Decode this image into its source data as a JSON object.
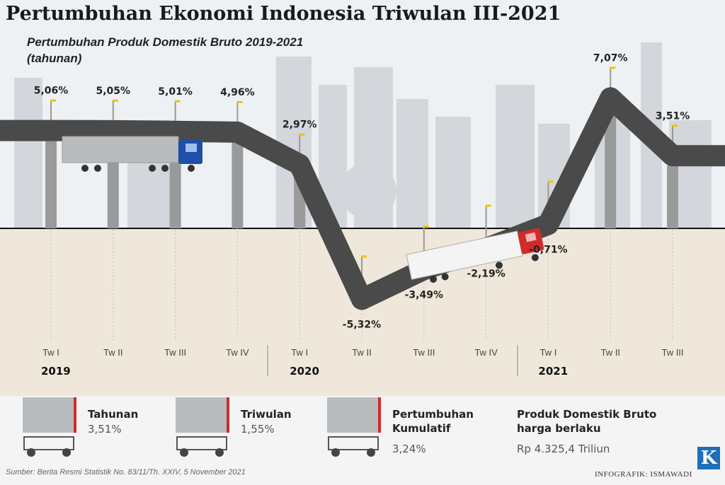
{
  "title": "Pertumbuhan Ekonomi Indonesia Triwulan III-2021",
  "subtitle_line1": "Pertumbuhan Produk Domestik Bruto 2019-2021",
  "subtitle_line2": "(tahunan)",
  "chart_data": {
    "type": "line",
    "x": [
      "Tw I",
      "Tw II",
      "Tw III",
      "Tw IV",
      "Tw I",
      "Tw II",
      "Tw III",
      "Tw IV",
      "Tw I",
      "Tw II",
      "Tw III"
    ],
    "years": [
      {
        "label": "2019",
        "start": 0
      },
      {
        "label": "2020",
        "start": 4
      },
      {
        "label": "2021",
        "start": 8
      }
    ],
    "series": [
      {
        "values": [
          5.06,
          5.05,
          5.01,
          4.96,
          2.97,
          -5.32,
          -3.49,
          -2.19,
          -0.71,
          7.07,
          3.51
        ],
        "labels": [
          "5,06%",
          "5,05%",
          "5,01%",
          "4,96%",
          "2,97%",
          "-5,32%",
          "-3,49%",
          "-2,19%",
          "-0,71%",
          "7,07%",
          "3,51%"
        ]
      }
    ],
    "colors": {
      "road": "#4a4a4a",
      "positive_bg": "#e7eaee",
      "negative_bg": "#e8dfcf",
      "truck_blue": "#1f4fa8",
      "truck_red": "#d22a2a"
    }
  },
  "legend": [
    {
      "label": "Tahunan",
      "value": "3,51%"
    },
    {
      "label": "Triwulan",
      "value": "1,55%"
    },
    {
      "label": "Pertumbuhan Kumulatif",
      "label_line1": "Pertumbuhan",
      "label_line2": "Kumulatif",
      "value": "3,24%"
    },
    {
      "label": "Produk Domestik Bruto harga berlaku",
      "label_line1": "Produk Domestik Bruto",
      "label_line2": "harga berlaku",
      "value": "Rp 4.325,4 Triliun"
    }
  ],
  "source": "Sumber: Berita Resmi Statistik No. 83/11/Th. XXIV, 5 November 2021",
  "credit": "INFOGRAFIK: ISMAWADI",
  "logo": "K"
}
